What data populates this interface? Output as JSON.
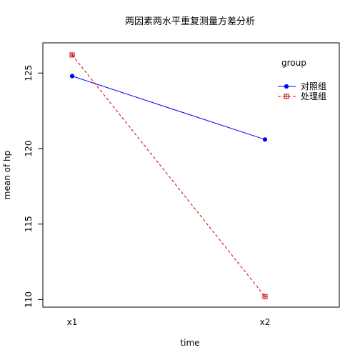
{
  "chart_data": {
    "type": "line",
    "title": "两因素两水平重复测量方差分析",
    "xlabel": "time",
    "ylabel": "mean of  hp",
    "categories": [
      "x1",
      "x2"
    ],
    "yticks": [
      110,
      115,
      120,
      125
    ],
    "ylim": [
      109.5,
      127.0
    ],
    "grid": false,
    "legend": {
      "title": "group",
      "placement": "top-right"
    },
    "series": [
      {
        "name": "对照组",
        "values": [
          124.8,
          120.6
        ],
        "color": "#0000ff",
        "line_style": "solid",
        "marker": "filled-circle"
      },
      {
        "name": "处理组",
        "values": [
          126.2,
          110.2
        ],
        "color": "#cc0000",
        "line_style": "dashed",
        "marker": "boxed-plus"
      }
    ]
  }
}
